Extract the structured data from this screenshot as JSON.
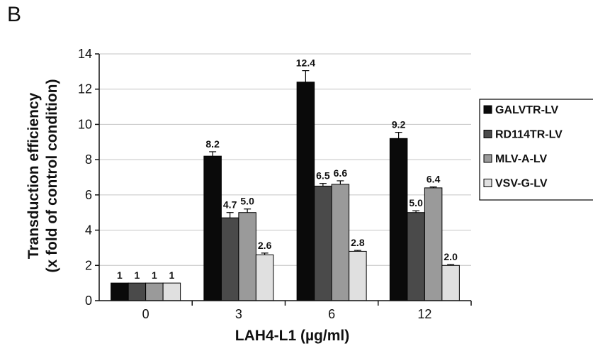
{
  "panel_label": "B",
  "chart_data": {
    "type": "bar",
    "categories": [
      "0",
      "3",
      "6",
      "12"
    ],
    "xlabel": "LAH4-L1 (µg/ml)",
    "ylabel_lines": [
      "Transduction efficiency",
      "(x fold of control condition)"
    ],
    "ylim": [
      0,
      14
    ],
    "yticks": [
      0,
      2,
      4,
      6,
      8,
      10,
      12,
      14
    ],
    "grid": true,
    "legend_position": "right",
    "series": [
      {
        "name": "GALVTR-LV",
        "color": "#0a0a0a",
        "values": [
          1,
          8.2,
          12.4,
          9.2
        ],
        "labels": [
          "1",
          "8.2",
          "12.4",
          "9.2"
        ],
        "errors": [
          0,
          0.25,
          0.65,
          0.35
        ]
      },
      {
        "name": "RD114TR-LV",
        "color": "#4a4a4a",
        "values": [
          1,
          4.7,
          6.5,
          5.0
        ],
        "labels": [
          "1",
          "4.7",
          "6.5",
          "5.0"
        ],
        "errors": [
          0,
          0.3,
          0.15,
          0.1
        ]
      },
      {
        "name": "MLV-A-LV",
        "color": "#9a9a9a",
        "values": [
          1,
          5.0,
          6.6,
          6.4
        ],
        "labels": [
          "1",
          "5.0",
          "6.6",
          "6.4"
        ],
        "errors": [
          0,
          0.2,
          0.2,
          0.05
        ]
      },
      {
        "name": "VSV-G-LV",
        "color": "#e0e0e0",
        "values": [
          1,
          2.6,
          2.8,
          2.0
        ],
        "labels": [
          "1",
          "2.6",
          "2.8",
          "2.0"
        ],
        "errors": [
          0,
          0.1,
          0.05,
          0.05
        ]
      }
    ]
  }
}
